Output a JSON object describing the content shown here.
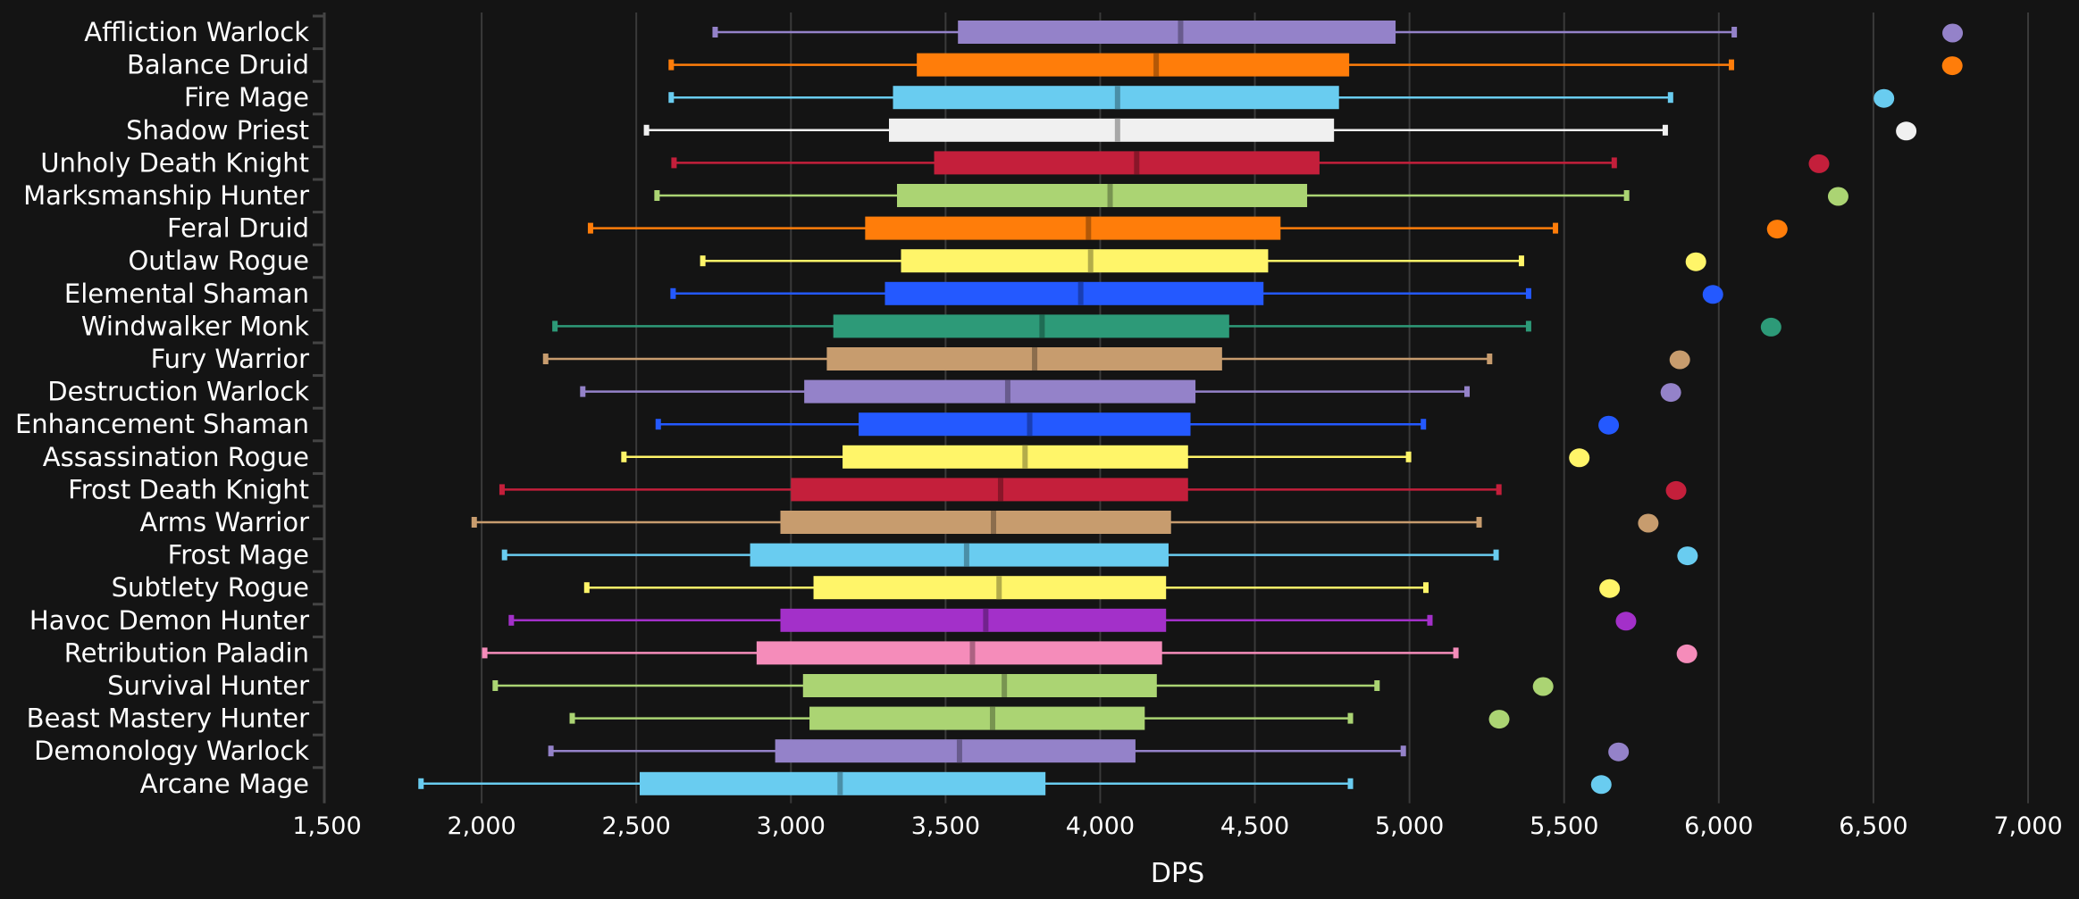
{
  "chart_data": {
    "type": "boxplot",
    "title": "",
    "xlabel": "DPS",
    "ylabel": "",
    "xlim": [
      1500,
      7000
    ],
    "xticks": [
      1500,
      2000,
      2500,
      3000,
      3500,
      4000,
      4500,
      5000,
      5500,
      6000,
      6500,
      7000
    ],
    "xtick_labels": [
      "1,500",
      "2,000",
      "2,500",
      "3,000",
      "3,500",
      "4,000",
      "4,500",
      "5,000",
      "5,500",
      "6,000",
      "6,500",
      "7,000"
    ],
    "grid": "vertical",
    "series": [
      {
        "name": "Affliction Warlock",
        "color": "#9482c9",
        "min": 2755,
        "q1": 3540,
        "median": 4260,
        "q3": 4955,
        "max": 6050,
        "outlier": 6756
      },
      {
        "name": "Balance Druid",
        "color": "#ff7d0a",
        "min": 2613,
        "q1": 3407,
        "median": 4181,
        "q3": 4805,
        "max": 6041,
        "outlier": 6755
      },
      {
        "name": "Fire Mage",
        "color": "#69ccf0",
        "min": 2613,
        "q1": 3330,
        "median": 4056,
        "q3": 4772,
        "max": 5844,
        "outlier": 6534
      },
      {
        "name": "Shadow Priest",
        "color": "#f0f0f0",
        "min": 2533,
        "q1": 3317,
        "median": 4056,
        "q3": 4756,
        "max": 5827,
        "outlier": 6606
      },
      {
        "name": "Unholy Death Knight",
        "color": "#c41f3b",
        "min": 2622,
        "q1": 3463,
        "median": 4118,
        "q3": 4709,
        "max": 5662,
        "outlier": 6324
      },
      {
        "name": "Marksmanship Hunter",
        "color": "#abd473",
        "min": 2567,
        "q1": 3343,
        "median": 4032,
        "q3": 4669,
        "max": 5702,
        "outlier": 6386
      },
      {
        "name": "Feral Druid",
        "color": "#ff7d0a",
        "min": 2352,
        "q1": 3240,
        "median": 3962,
        "q3": 4583,
        "max": 5472,
        "outlier": 6189
      },
      {
        "name": "Outlaw Rogue",
        "color": "#fff569",
        "min": 2715,
        "q1": 3356,
        "median": 3969,
        "q3": 4543,
        "max": 5362,
        "outlier": 5926
      },
      {
        "name": "Elemental Shaman",
        "color": "#2459ff",
        "min": 2619,
        "q1": 3304,
        "median": 3937,
        "q3": 4528,
        "max": 5385,
        "outlier": 5981
      },
      {
        "name": "Windwalker Monk",
        "color": "#2d9a78",
        "min": 2237,
        "q1": 3137,
        "median": 3812,
        "q3": 4417,
        "max": 5385,
        "outlier": 6169
      },
      {
        "name": "Fury Warrior",
        "color": "#c79c6e",
        "min": 2207,
        "q1": 3116,
        "median": 3788,
        "q3": 4394,
        "max": 5259,
        "outlier": 5874
      },
      {
        "name": "Destruction Warlock",
        "color": "#9482c9",
        "min": 2327,
        "q1": 3043,
        "median": 3701,
        "q3": 4308,
        "max": 5186,
        "outlier": 5845
      },
      {
        "name": "Enhancement Shaman",
        "color": "#2459ff",
        "min": 2571,
        "q1": 3219,
        "median": 3772,
        "q3": 4292,
        "max": 5045,
        "outlier": 5644
      },
      {
        "name": "Assassination Rogue",
        "color": "#fff569",
        "min": 2460,
        "q1": 3167,
        "median": 3757,
        "q3": 4284,
        "max": 4997,
        "outlier": 5549
      },
      {
        "name": "Frost Death Knight",
        "color": "#c41f3b",
        "min": 2066,
        "q1": 3000,
        "median": 3678,
        "q3": 4284,
        "max": 5289,
        "outlier": 5862
      },
      {
        "name": "Arms Warrior",
        "color": "#c79c6e",
        "min": 1976,
        "q1": 2966,
        "median": 3655,
        "q3": 4229,
        "max": 5225,
        "outlier": 5772
      },
      {
        "name": "Frost Mage",
        "color": "#69ccf0",
        "min": 2074,
        "q1": 2868,
        "median": 3568,
        "q3": 4221,
        "max": 5280,
        "outlier": 5899
      },
      {
        "name": "Subtlety Rogue",
        "color": "#fff569",
        "min": 2340,
        "q1": 3073,
        "median": 3673,
        "q3": 4213,
        "max": 5053,
        "outlier": 5647
      },
      {
        "name": "Havoc Demon Hunter",
        "color": "#a330c9",
        "min": 2096,
        "q1": 2966,
        "median": 3630,
        "q3": 4213,
        "max": 5066,
        "outlier": 5700
      },
      {
        "name": "Retribution Paladin",
        "color": "#f58cba",
        "min": 2010,
        "q1": 2889,
        "median": 3587,
        "q3": 4200,
        "max": 5150,
        "outlier": 5897
      },
      {
        "name": "Survival Hunter",
        "color": "#abd473",
        "min": 2044,
        "q1": 3039,
        "median": 3690,
        "q3": 4183,
        "max": 4895,
        "outlier": 5432
      },
      {
        "name": "Beast Mastery Hunter",
        "color": "#abd473",
        "min": 2293,
        "q1": 3060,
        "median": 3652,
        "q3": 4144,
        "max": 4809,
        "outlier": 5290
      },
      {
        "name": "Demonology Warlock",
        "color": "#9482c9",
        "min": 2224,
        "q1": 2949,
        "median": 3545,
        "q3": 4114,
        "max": 4980,
        "outlier": 5676
      },
      {
        "name": "Arcane Mage",
        "color": "#69ccf0",
        "min": 1804,
        "q1": 2511,
        "median": 3159,
        "q3": 3823,
        "max": 4809,
        "outlier": 5620
      }
    ]
  }
}
